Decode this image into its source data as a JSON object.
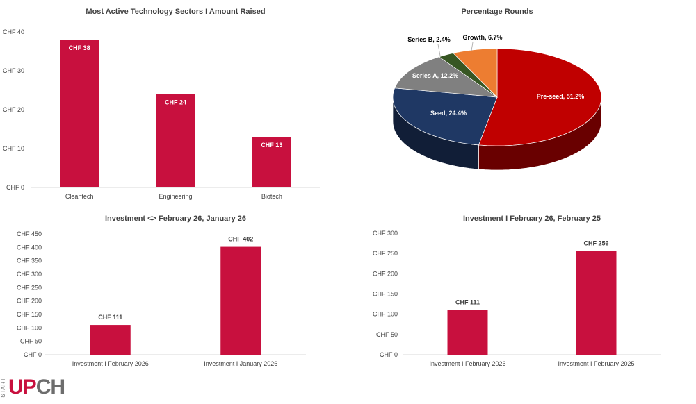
{
  "colors": {
    "bar": "#c8103e",
    "axis": "#d9d9d9",
    "text": "#404040",
    "logo_red": "#c8103e",
    "logo_grey": "#6d6d6d"
  },
  "logo": {
    "start": "START",
    "up": "UP",
    "ch": "CH"
  },
  "chart_data": [
    {
      "type": "bar",
      "title": "Most Active Technology Sectors I Amount Raised",
      "categories": [
        "Cleantech",
        "Engineering",
        "Biotech"
      ],
      "values": [
        38,
        24,
        13
      ],
      "data_labels": [
        "CHF 38",
        "CHF 24",
        "CHF 13"
      ],
      "data_label_position": "inside-top",
      "ylim": [
        0,
        40
      ],
      "yticks": [
        "CHF 0",
        "CHF 10",
        "CHF 20",
        "CHF 30",
        "CHF 40"
      ],
      "grid": false,
      "color": "#c8103e"
    },
    {
      "type": "pie",
      "title": "Percentage Rounds",
      "style": "3d",
      "slices": [
        {
          "label": "Pre-seed, 51.2%",
          "value": 51.2,
          "color": "#c00000"
        },
        {
          "label": "Seed, 24.4%",
          "value": 24.4,
          "color": "#1f3864"
        },
        {
          "label": "Series A, 12.2%",
          "value": 12.2,
          "color": "#808080"
        },
        {
          "label": "Series B, 2.4%",
          "value": 2.4,
          "color": "#375623"
        },
        {
          "label": "Growth, 6.7%",
          "value": 6.7,
          "color": "#ed7d31"
        }
      ]
    },
    {
      "type": "bar",
      "title": "Investment <> February 26, January 26",
      "categories": [
        "Investment I February 2026",
        "Investment I January 2026"
      ],
      "values": [
        111,
        402
      ],
      "data_labels": [
        "CHF 111",
        "CHF 402"
      ],
      "data_label_position": "above",
      "ylim": [
        0,
        450
      ],
      "yticks": [
        "CHF 0",
        "CHF 50",
        "CHF 100",
        "CHF 150",
        "CHF 200",
        "CHF 250",
        "CHF 300",
        "CHF 350",
        "CHF 400",
        "CHF 450"
      ],
      "grid": false,
      "color": "#c8103e"
    },
    {
      "type": "bar",
      "title": "Investment I February 26, February 25",
      "categories": [
        "Investment I February 2026",
        "Investment I February 2025"
      ],
      "values": [
        111,
        256
      ],
      "data_labels": [
        "CHF 111",
        "CHF 256"
      ],
      "data_label_position": "above",
      "ylim": [
        0,
        300
      ],
      "yticks": [
        "CHF 0",
        "CHF 50",
        "CHF 100",
        "CHF 150",
        "CHF 200",
        "CHF 250",
        "CHF 300"
      ],
      "grid": false,
      "color": "#c8103e"
    }
  ]
}
